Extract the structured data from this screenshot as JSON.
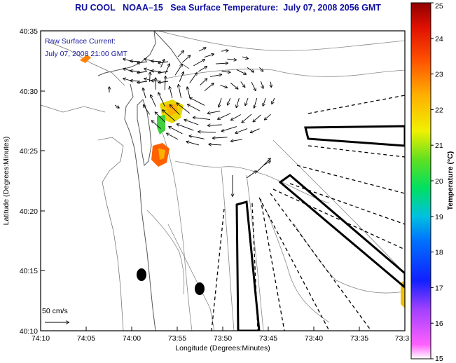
{
  "header": {
    "source": "RU COOL",
    "satellite": "NOAA–15",
    "product": "Sea Surface Temperature:",
    "datetime": "July 07, 2008 2056 GMT"
  },
  "overlay": {
    "line1": "Raw Surface Current:",
    "line2": "July 07, 2008 21:00 GMT"
  },
  "scale": {
    "label": "50 cm/s"
  },
  "axes": {
    "xlabel": "Longitude (Degrees:Minutes)",
    "ylabel": "Latitude (Degrees:Minutes)",
    "xticks": [
      "74:10",
      "74:05",
      "74:00",
      "73:55",
      "73:50",
      "73:45",
      "73:40",
      "73:35",
      "73:3"
    ],
    "yticks": [
      "40:35",
      "40:30",
      "40:25",
      "40:20",
      "40:15",
      "40:10"
    ]
  },
  "colorbar": {
    "label": "Temperature (°C)",
    "min": 15,
    "max": 25,
    "ticks": [
      "25",
      "24",
      "23",
      "22",
      "21",
      "20",
      "19",
      "18",
      "17",
      "16",
      "15"
    ]
  },
  "colors": {
    "title": "#1010a0",
    "overlay": "#1818a0"
  }
}
